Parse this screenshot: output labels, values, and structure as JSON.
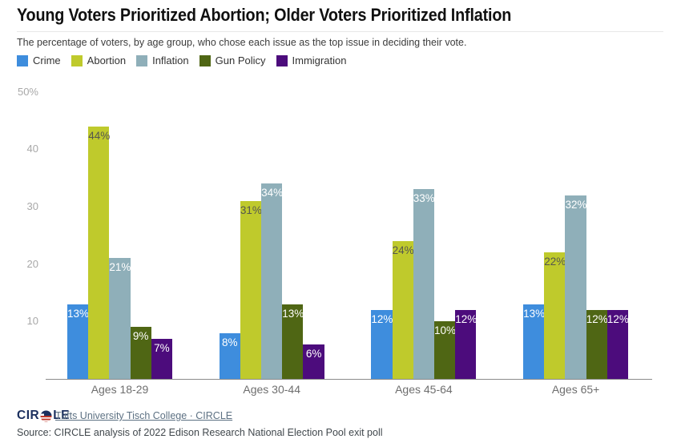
{
  "chart_data": {
    "type": "bar",
    "title": "Young Voters Prioritized Abortion; Older Voters Prioritized Inflation",
    "subtitle": "The percentage of voters, by age group, who chose each issue as the top issue in deciding their vote.",
    "categories": [
      "Ages 18-29",
      "Ages 30-44",
      "Ages 45-64",
      "Ages 65+"
    ],
    "series": [
      {
        "name": "Crime",
        "color": "#3E8DDD",
        "label_color": "#ffffff",
        "values": [
          13,
          8,
          12,
          13
        ]
      },
      {
        "name": "Abortion",
        "color": "#BFCA2C",
        "label_color": "#55564E",
        "values": [
          44,
          31,
          24,
          22
        ]
      },
      {
        "name": "Inflation",
        "color": "#8FAFB9",
        "label_color": "#ffffff",
        "values": [
          21,
          34,
          33,
          32
        ]
      },
      {
        "name": "Gun Policy",
        "color": "#4F6614",
        "label_color": "#ffffff",
        "values": [
          9,
          13,
          10,
          12
        ]
      },
      {
        "name": "Immigration",
        "color": "#4C0C7C",
        "label_color": "#ffffff",
        "values": [
          7,
          6,
          12,
          12
        ]
      }
    ],
    "value_suffix": "%",
    "ylim": [
      0,
      50
    ],
    "yticks": [
      {
        "value": 10,
        "label": "10"
      },
      {
        "value": 20,
        "label": "20"
      },
      {
        "value": 30,
        "label": "30"
      },
      {
        "value": 40,
        "label": "40"
      },
      {
        "value": 50,
        "label": "50%"
      }
    ],
    "grid": false,
    "legend_position": "top"
  },
  "footer": {
    "logo_left": "CIR",
    "logo_right": "LE",
    "link": "Tufts University Tisch College · CIRCLE",
    "source": "Source: CIRCLE analysis of 2022 Edison Research National Election Pool exit poll"
  },
  "colors": {
    "axis": "#8c8c8c",
    "tick_label": "#a8a8a8",
    "logo_navy": "#1b2f5e",
    "logo_red": "#c0392b"
  }
}
